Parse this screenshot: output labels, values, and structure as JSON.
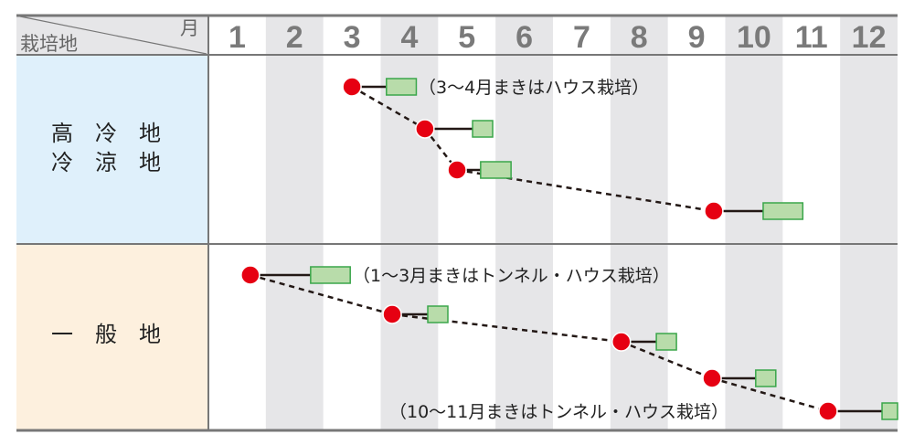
{
  "header": {
    "region_label": "栽培地",
    "month_label": "月",
    "months": [
      "1",
      "2",
      "3",
      "4",
      "5",
      "6",
      "7",
      "8",
      "9",
      "10",
      "11",
      "12"
    ]
  },
  "colors": {
    "sowing": "#e60012",
    "harvest_fill": "#b8dcaa",
    "harvest_border": "#3aa64a",
    "highland_bg": "#dff0fb",
    "general_bg": "#fdf0de",
    "stripe": "#e6e6e8"
  },
  "legend_meaning": {},
  "regions": [
    {
      "name_line1": "高　冷　地",
      "name_line2": "冷　涼　地",
      "note": "（3〜4月まきはハウス栽培）",
      "schedules": [
        {
          "sowing_month": 3.5,
          "harvest": [
            4.1,
            4.62
          ]
        },
        {
          "sowing_month": 4.77,
          "harvest": [
            5.6,
            5.95
          ]
        },
        {
          "sowing_month": 5.33,
          "harvest": [
            5.74,
            6.27
          ]
        },
        {
          "sowing_month": 9.8,
          "harvest": [
            10.66,
            11.35
          ]
        }
      ]
    },
    {
      "name_line1": "一　般　地",
      "note": "（1〜3月まきはトンネル・ハウス栽培）",
      "note2": "（10〜11月まきはトンネル・ハウス栽培）",
      "schedules": [
        {
          "sowing_month": 1.73,
          "harvest": [
            2.78,
            3.47
          ]
        },
        {
          "sowing_month": 4.2,
          "harvest": [
            4.82,
            5.17
          ]
        },
        {
          "sowing_month": 8.19,
          "harvest": [
            8.8,
            9.15
          ]
        },
        {
          "sowing_month": 9.77,
          "harvest": [
            10.53,
            10.88
          ]
        },
        {
          "sowing_month": 11.79,
          "harvest": [
            12.73,
            13.0
          ]
        }
      ]
    }
  ]
}
